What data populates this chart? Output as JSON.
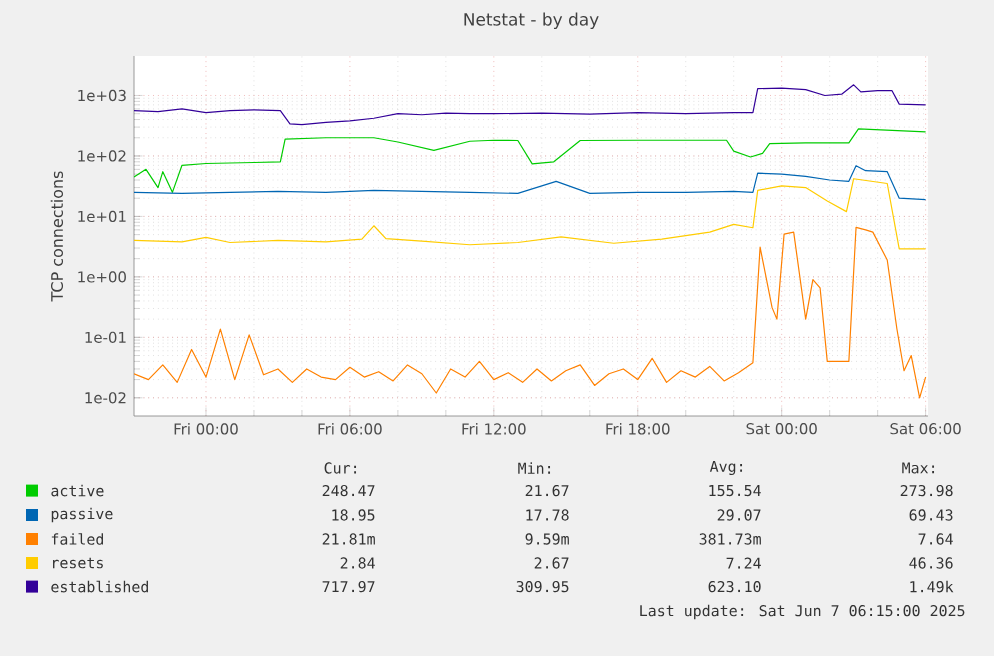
{
  "chart_data": {
    "type": "line",
    "title": "Netstat - by day",
    "ylabel": "TCP connections",
    "log": "y",
    "grid": true,
    "legend": "bottom",
    "xlim": [
      "2025-06-05T21:00",
      "2025-06-07T06:06"
    ],
    "xticks": [
      {
        "value": "2025-06-06T00:00",
        "label": "Fri 00:00"
      },
      {
        "value": "2025-06-06T06:00",
        "label": "Fri 06:00"
      },
      {
        "value": "2025-06-06T12:00",
        "label": "Fri 12:00"
      },
      {
        "value": "2025-06-06T18:00",
        "label": "Fri 18:00"
      },
      {
        "value": "2025-06-07T00:00",
        "label": "Sat 00:00"
      },
      {
        "value": "2025-06-07T06:00",
        "label": "Sat 06:00"
      }
    ],
    "ylim": [
      0.005,
      4500
    ],
    "yticks": [
      {
        "value": 0.01,
        "label": "1e-02"
      },
      {
        "value": 0.1,
        "label": "1e-01"
      },
      {
        "value": 1,
        "label": "1e+00"
      },
      {
        "value": 10,
        "label": "1e+01"
      },
      {
        "value": 100,
        "label": "1e+02"
      },
      {
        "value": 1000,
        "label": "1e+03"
      }
    ],
    "series": [
      {
        "name": "active",
        "color": "#00cc00",
        "x": [
          "2025-06-05T21:00",
          "2025-06-05T21:30",
          "2025-06-05T22:00",
          "2025-06-05T22:12",
          "2025-06-05T22:36",
          "2025-06-05T23:00",
          "2025-06-06T00:00",
          "2025-06-06T02:00",
          "2025-06-06T03:06",
          "2025-06-06T03:18",
          "2025-06-06T05:00",
          "2025-06-06T07:00",
          "2025-06-06T08:00",
          "2025-06-06T09:30",
          "2025-06-06T11:00",
          "2025-06-06T12:00",
          "2025-06-06T13:00",
          "2025-06-06T13:36",
          "2025-06-06T14:30",
          "2025-06-06T15:36",
          "2025-06-06T18:00",
          "2025-06-06T21:42",
          "2025-06-06T22:00",
          "2025-06-06T22:42",
          "2025-06-06T23:12",
          "2025-06-06T23:30",
          "2025-06-07T01:00",
          "2025-06-07T02:48",
          "2025-06-07T03:12",
          "2025-06-07T06:00"
        ],
        "values": [
          45,
          60,
          30,
          55,
          25,
          70,
          75,
          78,
          80,
          190,
          200,
          200,
          170,
          124,
          175,
          182,
          180,
          74,
          80,
          180,
          182,
          182,
          120,
          96,
          110,
          160,
          165,
          165,
          280,
          250
        ]
      },
      {
        "name": "passive",
        "color": "#0066b3",
        "x": [
          "2025-06-05T21:00",
          "2025-06-05T23:00",
          "2025-06-06T01:00",
          "2025-06-06T03:00",
          "2025-06-06T05:00",
          "2025-06-06T07:00",
          "2025-06-06T09:00",
          "2025-06-06T11:00",
          "2025-06-06T13:00",
          "2025-06-06T14:36",
          "2025-06-06T16:00",
          "2025-06-06T18:00",
          "2025-06-06T20:00",
          "2025-06-06T22:00",
          "2025-06-06T22:48",
          "2025-06-06T23:00",
          "2025-06-07T00:00",
          "2025-06-07T01:00",
          "2025-06-07T02:00",
          "2025-06-07T02:48",
          "2025-06-07T03:06",
          "2025-06-07T03:30",
          "2025-06-07T04:24",
          "2025-06-07T04:54",
          "2025-06-07T06:00"
        ],
        "values": [
          25,
          24,
          25,
          26,
          25,
          27,
          26,
          25,
          24,
          38,
          24,
          25,
          25,
          26,
          25,
          52,
          50,
          46,
          40,
          38,
          69,
          57,
          55,
          20,
          19
        ]
      },
      {
        "name": "failed",
        "color": "#ff8000",
        "x": [
          "2025-06-05T21:00",
          "2025-06-05T21:36",
          "2025-06-05T22:12",
          "2025-06-05T22:48",
          "2025-06-05T23:24",
          "2025-06-06T00:00",
          "2025-06-06T00:36",
          "2025-06-06T01:12",
          "2025-06-06T01:48",
          "2025-06-06T02:24",
          "2025-06-06T03:00",
          "2025-06-06T03:36",
          "2025-06-06T04:12",
          "2025-06-06T04:48",
          "2025-06-06T05:24",
          "2025-06-06T06:00",
          "2025-06-06T06:36",
          "2025-06-06T07:12",
          "2025-06-06T07:48",
          "2025-06-06T08:24",
          "2025-06-06T09:00",
          "2025-06-06T09:36",
          "2025-06-06T10:12",
          "2025-06-06T10:48",
          "2025-06-06T11:24",
          "2025-06-06T12:00",
          "2025-06-06T12:36",
          "2025-06-06T13:12",
          "2025-06-06T13:48",
          "2025-06-06T14:24",
          "2025-06-06T15:00",
          "2025-06-06T15:36",
          "2025-06-06T16:12",
          "2025-06-06T16:48",
          "2025-06-06T17:24",
          "2025-06-06T18:00",
          "2025-06-06T18:36",
          "2025-06-06T19:12",
          "2025-06-06T19:48",
          "2025-06-06T20:24",
          "2025-06-06T21:00",
          "2025-06-06T21:36",
          "2025-06-06T22:12",
          "2025-06-06T22:48",
          "2025-06-06T23:06",
          "2025-06-06T23:36",
          "2025-06-06T23:48",
          "2025-06-07T00:06",
          "2025-06-07T00:30",
          "2025-06-07T01:00",
          "2025-06-07T01:18",
          "2025-06-07T01:36",
          "2025-06-07T01:54",
          "2025-06-07T02:48",
          "2025-06-07T03:06",
          "2025-06-07T03:30",
          "2025-06-07T03:48",
          "2025-06-07T04:24",
          "2025-06-07T04:48",
          "2025-06-07T05:06",
          "2025-06-07T05:24",
          "2025-06-07T05:45",
          "2025-06-07T06:00"
        ],
        "values": [
          0.025,
          0.02,
          0.035,
          0.018,
          0.063,
          0.022,
          0.137,
          0.02,
          0.11,
          0.024,
          0.03,
          0.018,
          0.03,
          0.022,
          0.02,
          0.032,
          0.022,
          0.027,
          0.019,
          0.035,
          0.025,
          0.012,
          0.03,
          0.022,
          0.04,
          0.02,
          0.026,
          0.018,
          0.03,
          0.019,
          0.028,
          0.035,
          0.016,
          0.025,
          0.03,
          0.02,
          0.045,
          0.018,
          0.028,
          0.022,
          0.033,
          0.019,
          0.026,
          0.038,
          3.1,
          0.31,
          0.2,
          5.1,
          5.5,
          0.2,
          0.9,
          0.66,
          0.04,
          0.04,
          6.6,
          6.0,
          5.5,
          1.9,
          0.14,
          0.028,
          0.05,
          0.01,
          0.022
        ]
      },
      {
        "name": "resets",
        "color": "#ffcc00",
        "x": [
          "2025-06-05T21:00",
          "2025-06-05T23:00",
          "2025-06-06T00:00",
          "2025-06-06T01:00",
          "2025-06-06T03:00",
          "2025-06-06T05:00",
          "2025-06-06T06:30",
          "2025-06-06T07:00",
          "2025-06-06T07:30",
          "2025-06-06T09:00",
          "2025-06-06T11:00",
          "2025-06-06T13:00",
          "2025-06-06T14:48",
          "2025-06-06T17:00",
          "2025-06-06T19:00",
          "2025-06-06T21:00",
          "2025-06-06T22:00",
          "2025-06-06T22:48",
          "2025-06-06T23:00",
          "2025-06-07T00:00",
          "2025-06-07T01:00",
          "2025-06-07T01:54",
          "2025-06-07T02:42",
          "2025-06-07T03:00",
          "2025-06-07T04:24",
          "2025-06-07T04:54",
          "2025-06-07T06:00"
        ],
        "values": [
          4,
          3.8,
          4.5,
          3.7,
          4,
          3.8,
          4.2,
          7,
          4.3,
          3.9,
          3.4,
          3.7,
          4.6,
          3.6,
          4.2,
          5.5,
          7.4,
          6.5,
          27,
          32,
          30,
          18,
          12,
          42,
          35,
          2.9,
          2.9
        ]
      },
      {
        "name": "established",
        "color": "#330099",
        "x": [
          "2025-06-05T21:00",
          "2025-06-05T22:00",
          "2025-06-05T23:00",
          "2025-06-06T00:00",
          "2025-06-06T01:00",
          "2025-06-06T02:00",
          "2025-06-06T03:06",
          "2025-06-06T03:30",
          "2025-06-06T04:00",
          "2025-06-06T05:00",
          "2025-06-06T06:00",
          "2025-06-06T07:00",
          "2025-06-06T08:00",
          "2025-06-06T09:00",
          "2025-06-06T10:00",
          "2025-06-06T11:00",
          "2025-06-06T12:00",
          "2025-06-06T14:00",
          "2025-06-06T16:00",
          "2025-06-06T18:00",
          "2025-06-06T20:00",
          "2025-06-06T22:00",
          "2025-06-06T22:48",
          "2025-06-06T23:00",
          "2025-06-07T00:00",
          "2025-06-07T01:00",
          "2025-06-07T01:48",
          "2025-06-07T02:30",
          "2025-06-07T03:00",
          "2025-06-07T03:18",
          "2025-06-07T04:00",
          "2025-06-07T04:36",
          "2025-06-07T04:54",
          "2025-06-07T06:00"
        ],
        "values": [
          560,
          540,
          600,
          520,
          560,
          580,
          560,
          340,
          330,
          360,
          380,
          420,
          500,
          480,
          510,
          500,
          500,
          510,
          490,
          520,
          500,
          520,
          520,
          1300,
          1320,
          1250,
          1000,
          1050,
          1500,
          1150,
          1200,
          1200,
          720,
          700
        ]
      }
    ],
    "annotations": [
      "Cur:",
      "Min:",
      "Avg:",
      "Max:",
      "248.47",
      "21.67",
      "155.54",
      "273.98",
      "18.95",
      "17.78",
      "29.07",
      "69.43",
      "21.81m",
      "9.59m",
      "381.73m",
      "7.64",
      "2.84",
      "2.67",
      "7.24",
      "46.36",
      "717.97",
      "309.95",
      "623.10",
      "1.49k",
      "Last update:  Sat Jun  7 06:15:00 2025"
    ]
  }
}
